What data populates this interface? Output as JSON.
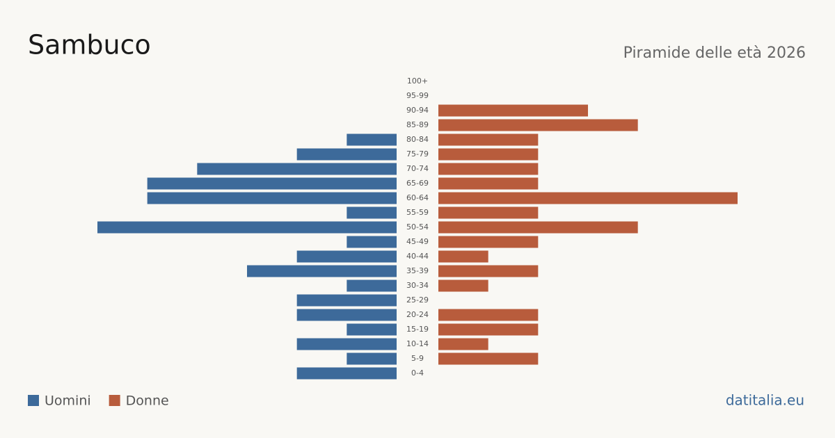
{
  "chart_data": {
    "type": "pyramid",
    "title": "Sambuco",
    "subtitle": "Piramide delle età 2026",
    "source": "datitalia.eu",
    "categories": [
      "100+",
      "95-99",
      "90-94",
      "85-89",
      "80-84",
      "75-79",
      "70-74",
      "65-69",
      "60-64",
      "55-59",
      "50-54",
      "45-49",
      "40-44",
      "35-39",
      "30-34",
      "25-29",
      "20-24",
      "15-19",
      "10-14",
      "5-9",
      "0-4"
    ],
    "series": [
      {
        "name": "Uomini",
        "color": "#3d6a9a",
        "values": [
          0,
          0,
          0,
          0,
          1,
          2,
          4,
          5,
          5,
          1,
          6,
          1,
          2,
          3,
          1,
          2,
          2,
          1,
          2,
          1,
          2
        ]
      },
      {
        "name": "Donne",
        "color": "#b85c3c",
        "values": [
          0,
          0,
          3,
          4,
          2,
          2,
          2,
          2,
          6,
          2,
          4,
          2,
          1,
          2,
          1,
          0,
          2,
          2,
          1,
          2,
          0
        ]
      }
    ]
  }
}
